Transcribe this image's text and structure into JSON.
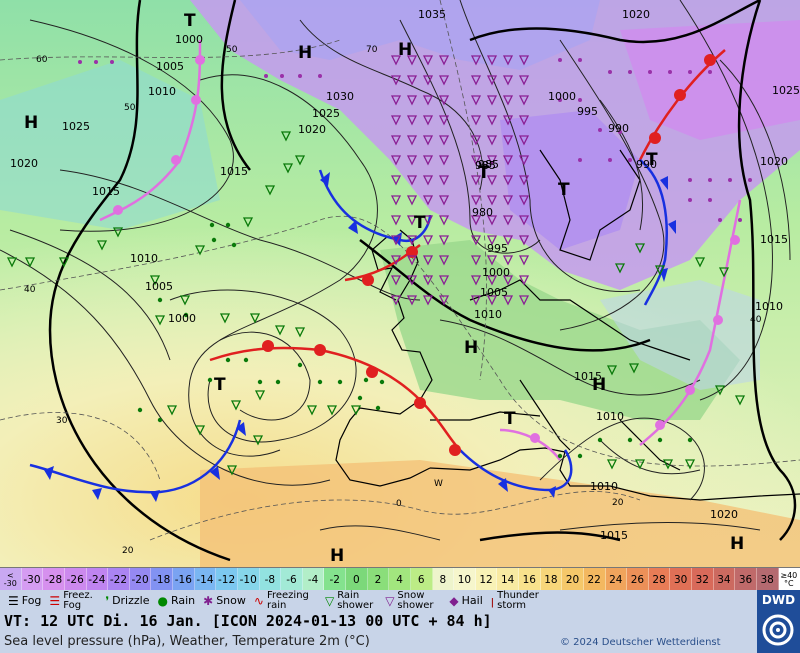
{
  "map": {
    "pressure_labels": [
      "1035",
      "1020",
      "1025",
      "1030",
      "1025",
      "1020",
      "1015",
      "1010",
      "1005",
      "1000",
      "995",
      "990",
      "985",
      "980",
      "1000",
      "1005",
      "1010",
      "1015",
      "1020",
      "1010",
      "1015",
      "1010",
      "1020",
      "1025",
      "1015",
      "1010",
      "1015",
      "1020",
      "1005",
      "1000",
      "1010",
      "1000",
      "995",
      "990",
      "985"
    ],
    "center_labels": {
      "high": "H",
      "low": "T"
    },
    "temp_labels": [
      "60",
      "50",
      "40",
      "50",
      "70",
      "30",
      "20",
      "0",
      "40",
      "20",
      "W"
    ]
  },
  "colorbar": {
    "first_top": "<",
    "first_bottom": "-30",
    "values": [
      "-30",
      "-28",
      "-26",
      "-24",
      "-22",
      "-20",
      "-18",
      "-16",
      "-14",
      "-12",
      "-10",
      "-8",
      "-6",
      "-4",
      "-2",
      "0",
      "2",
      "4",
      "6",
      "8",
      "10",
      "12",
      "14",
      "16",
      "18",
      "20",
      "22",
      "24",
      "26",
      "28",
      "30",
      "32",
      "34",
      "36",
      "38"
    ],
    "last_top": "≥40",
    "last_bottom": "°C",
    "colors": [
      "#c9a8f2",
      "#d59cf2",
      "#d690ee",
      "#cc89ee",
      "#bf84f0",
      "#aa84f2",
      "#9589f2",
      "#8292f2",
      "#7aa3f2",
      "#7ab6f2",
      "#7cc8f0",
      "#86d6ea",
      "#92e2e0",
      "#a2ead6",
      "#b2eec8",
      "#84e28e",
      "#7cd87a",
      "#8ade7a",
      "#a2e67e",
      "#bcec86",
      "#eef4cc",
      "#f6f6cc",
      "#f8f2b6",
      "#f8eaa2",
      "#f8e28c",
      "#f7d67a",
      "#f5c86a",
      "#f3b860",
      "#f0a45c",
      "#ec9058",
      "#e87c56",
      "#e07056",
      "#d86a5a",
      "#cc6a60",
      "#c06a6a",
      "#b56a70",
      "#a86a70"
    ]
  },
  "legend": {
    "fog": "Fog",
    "freezing_fog": "Freez. Fog",
    "drizzle": "Drizzle",
    "rain": "Rain",
    "snow": "Snow",
    "freezing_rain": "Freezing rain",
    "rain_shower": "Rain shower",
    "snow_shower": "Snow shower",
    "hail": "Hail",
    "thunderstorm": "Thunder storm"
  },
  "footer": {
    "valid_time": "VT: 12 UTC Di.  16 Jan. [ICON 2024-01-13  00 UTC + 84 h]",
    "subtitle": "Sea level pressure (hPa), Weather, Temperature 2m (°C)",
    "copyright": "© 2024 Deutscher Wetterdienst",
    "logo": "DWD"
  }
}
